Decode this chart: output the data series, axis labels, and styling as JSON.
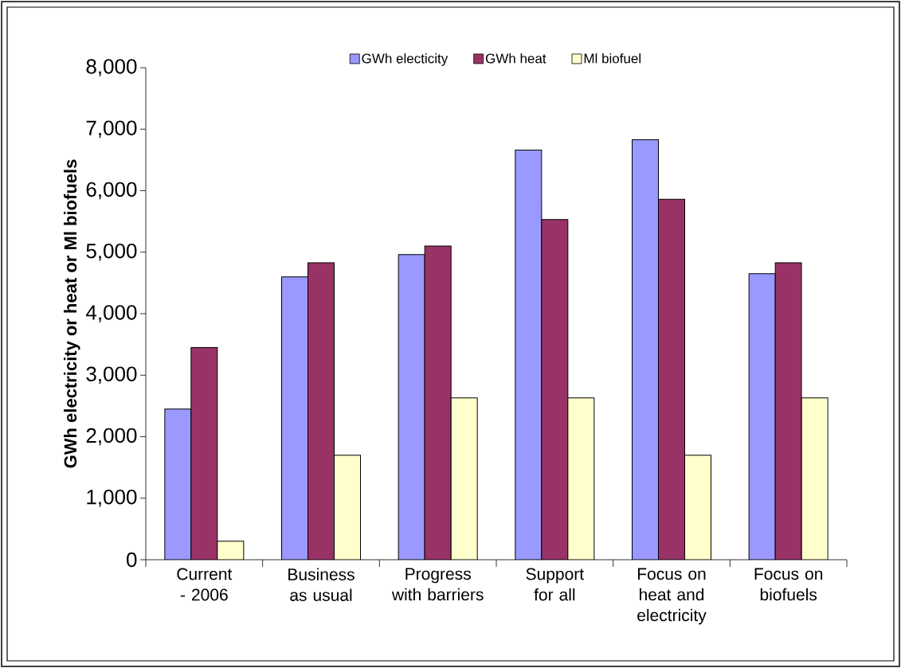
{
  "chart_data": {
    "type": "bar",
    "ylabel": "GWh electricity or heat or Ml biofuels",
    "categories": [
      "Current - 2006",
      "Business as usual",
      "Progress with barriers",
      "Support for all",
      "Focus on heat and electricity",
      "Focus on biofuels"
    ],
    "series": [
      {
        "name": "GWh electicity",
        "color": "#9999ff",
        "values": [
          2450,
          4600,
          4960,
          6660,
          6830,
          4650
        ]
      },
      {
        "name": "GWh heat",
        "color": "#993366",
        "values": [
          3450,
          4830,
          5100,
          5530,
          5860,
          4830
        ]
      },
      {
        "name": "Ml biofuel",
        "color": "#ffffcc",
        "values": [
          300,
          1700,
          2630,
          2630,
          1700,
          2630
        ]
      }
    ],
    "ylim": [
      0,
      8000
    ],
    "yticks": [
      0,
      {
        "value": 1000,
        "label": "1,000"
      },
      {
        "value": 2000,
        "label": "2,000"
      },
      {
        "value": 3000,
        "label": "3,000"
      },
      {
        "value": 4000,
        "label": "4,000"
      },
      {
        "value": 5000,
        "label": "5,000"
      },
      {
        "value": 6000,
        "label": "6,000"
      },
      {
        "value": 7000,
        "label": "7,000"
      },
      {
        "value": 8000,
        "label": "8,000"
      }
    ],
    "legend": "top",
    "grid": false
  }
}
